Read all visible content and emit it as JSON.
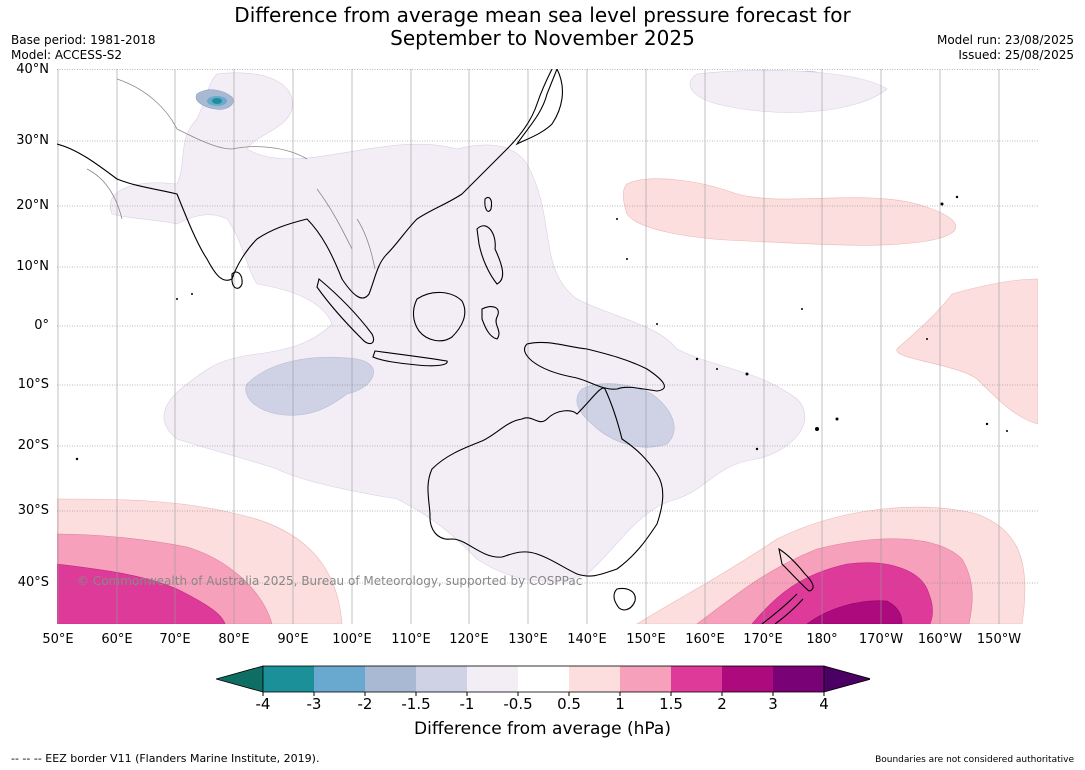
{
  "title_line1": "Difference from average mean sea level pressure forecast for",
  "title_line2": "September to November 2025",
  "base_period": "Base period: 1981-2018",
  "model": "Model: ACCESS-S2",
  "model_run": "Model run: 23/08/2025",
  "issued": "Issued: 25/08/2025",
  "lat_labels": [
    "40°N",
    "30°N",
    "20°N",
    "10°N",
    "0°",
    "10°S",
    "20°S",
    "30°S",
    "40°S"
  ],
  "lon_labels": [
    "50°E",
    "60°E",
    "70°E",
    "80°E",
    "90°E",
    "100°E",
    "110°E",
    "120°E",
    "130°E",
    "140°E",
    "150°E",
    "160°E",
    "170°E",
    "180°",
    "170°W",
    "160°W",
    "150°W"
  ],
  "copyright": "© Commonwealth of Australia 2025, Bureau of Meteorology, supported by COSPPac",
  "colorbar": {
    "ticks": [
      "-4",
      "-3",
      "-2",
      "-1.5",
      "-1",
      "-0.5",
      "0.5",
      "1",
      "1.5",
      "2",
      "3",
      "4"
    ],
    "colors": [
      "#0e6e63",
      "#1b9098",
      "#69a9d0",
      "#a9b9d4",
      "#cfd1e5",
      "#f3eef6",
      "#ffffff",
      "#fcdede",
      "#f7a0bb",
      "#de3a9a",
      "#ad0a7e",
      "#7a0277",
      "#4b0064"
    ],
    "label": "Difference from average (hPa)"
  },
  "footer_left": "--  --  -- EEZ border V11 (Flanders Marine Institute, 2019).",
  "footer_right": "Boundaries are not considered authoritative"
}
